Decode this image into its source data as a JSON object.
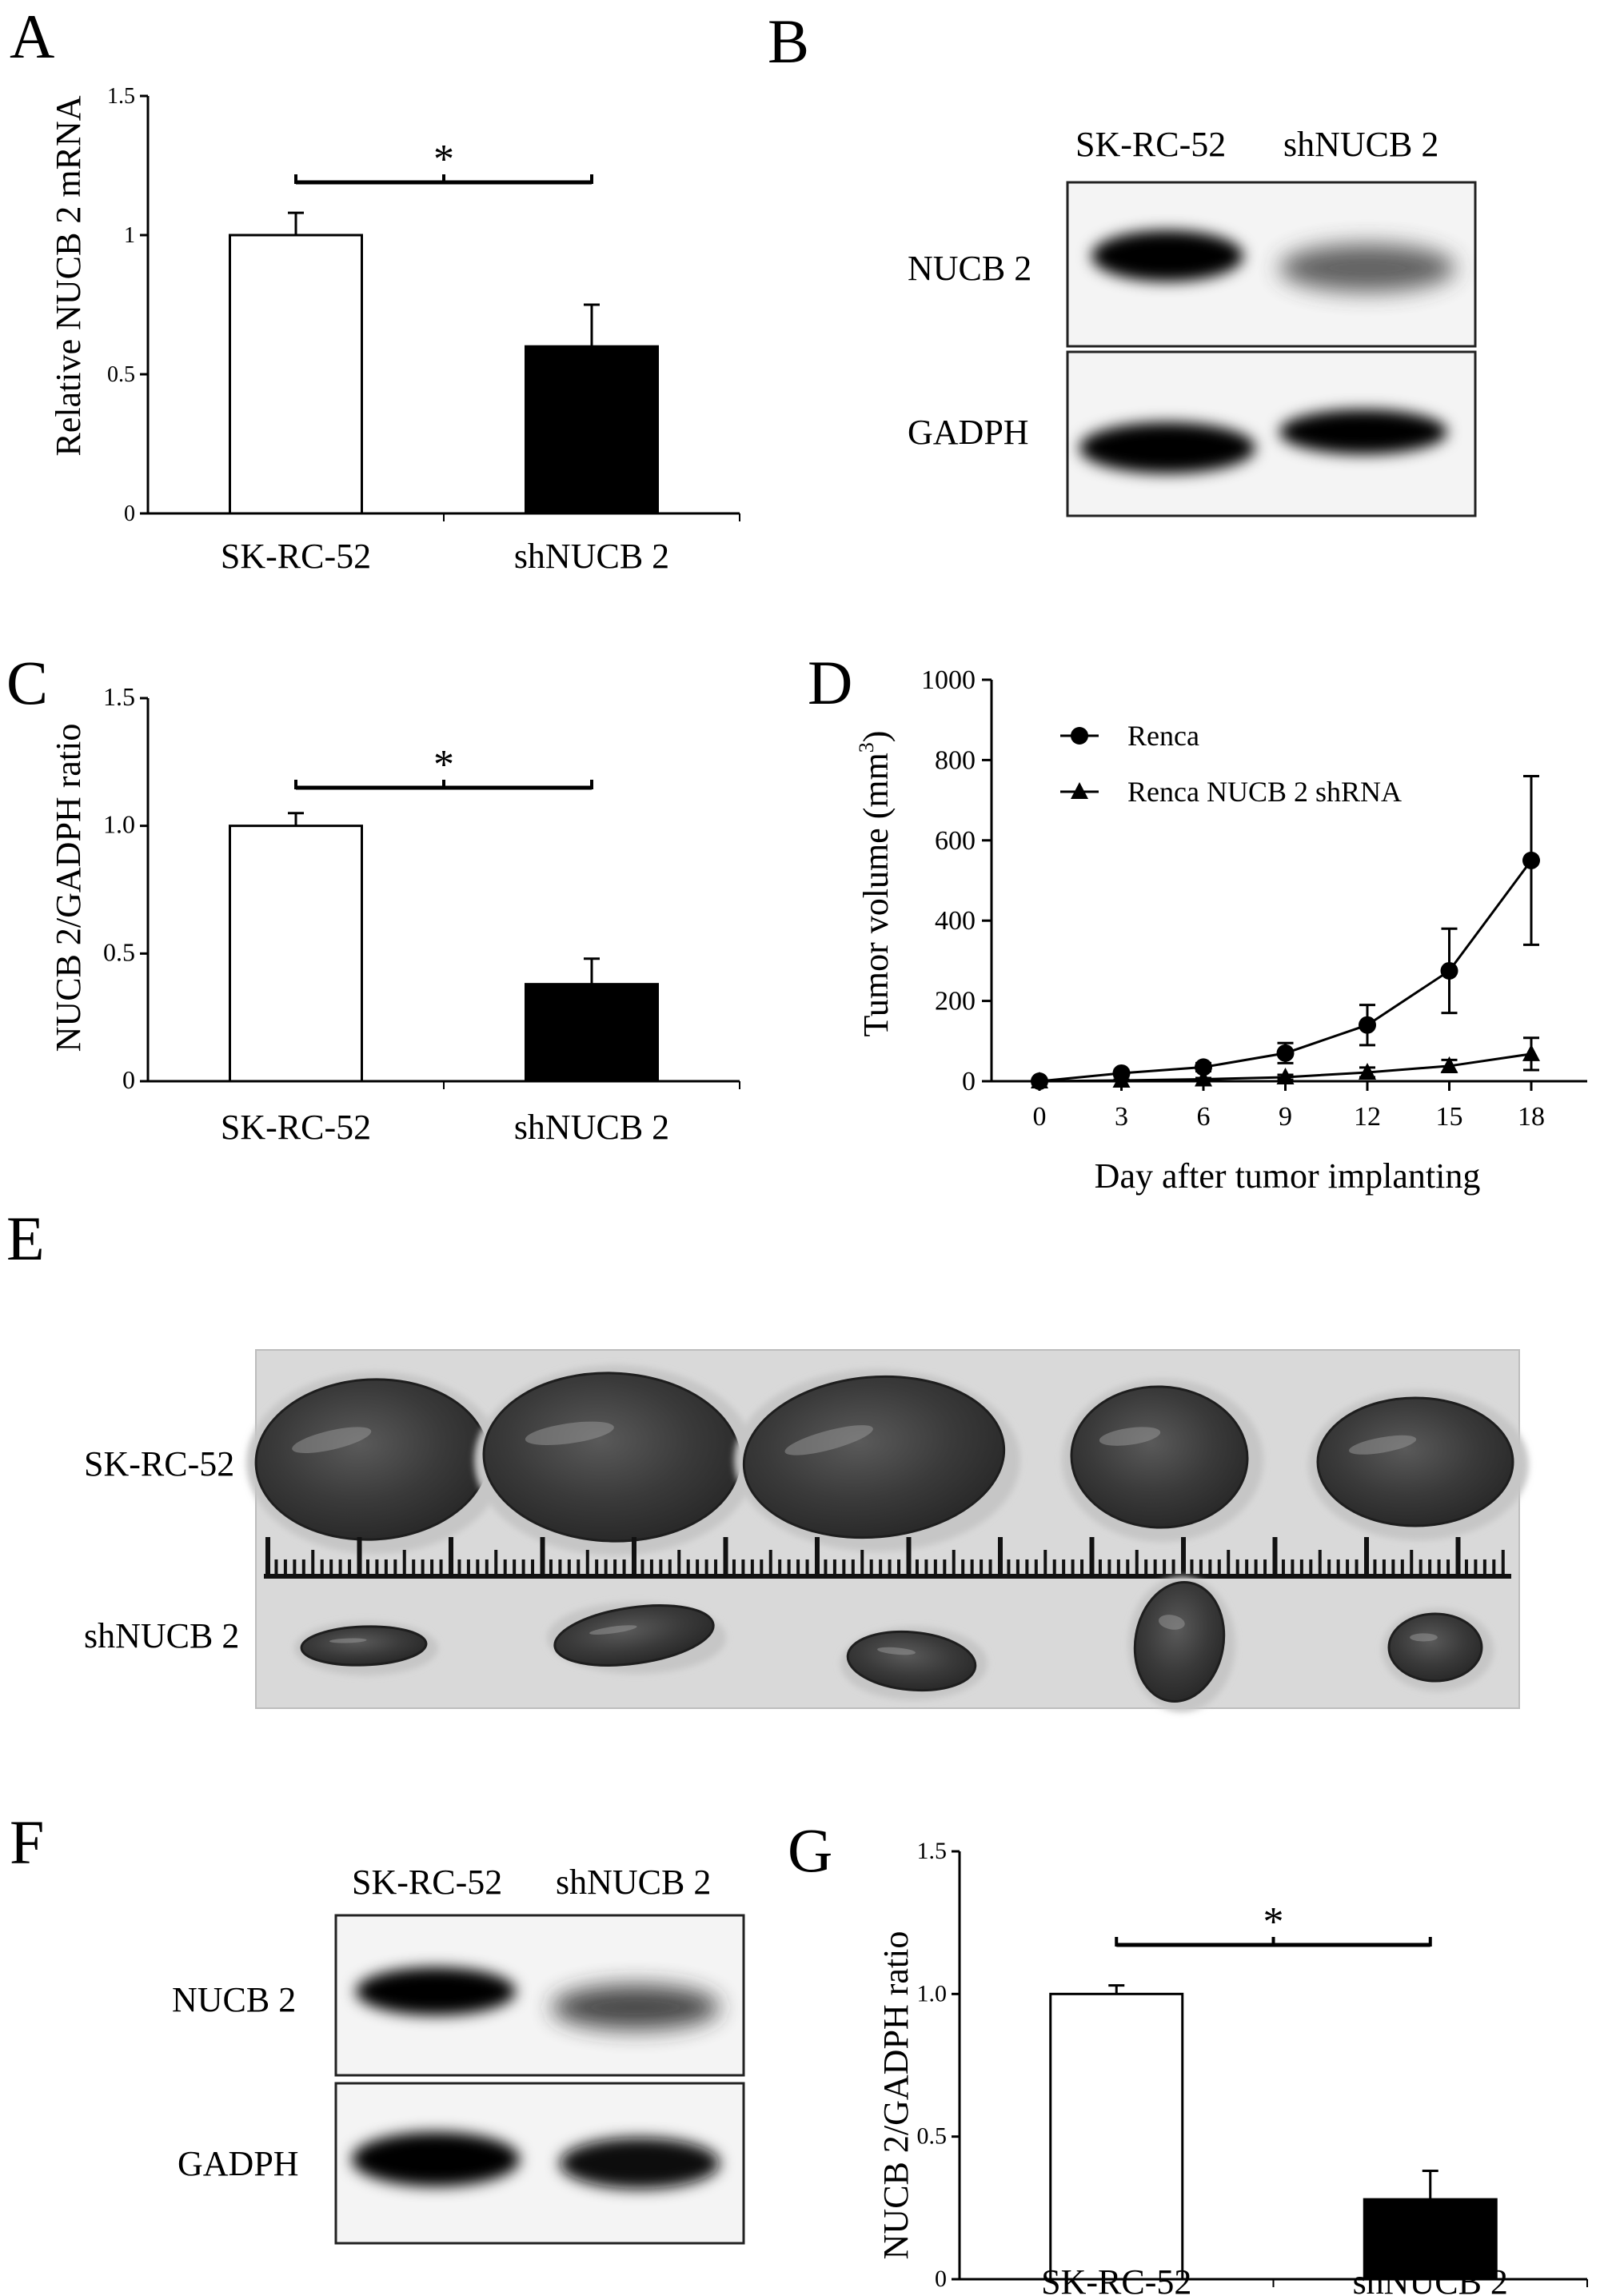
{
  "panels": {
    "A": {
      "letter": "A"
    },
    "B": {
      "letter": "B",
      "lanes": [
        "SK-RC-52",
        "shNUCB 2"
      ],
      "rows": [
        "NUCB 2",
        "GADPH"
      ]
    },
    "C": {
      "letter": "C"
    },
    "D": {
      "letter": "D"
    },
    "E": {
      "letter": "E",
      "rows": [
        "SK-RC-52",
        "shNUCB 2"
      ]
    },
    "F": {
      "letter": "F",
      "lanes": [
        "SK-RC-52",
        "shNUCB 2"
      ],
      "rows": [
        "NUCB 2",
        "GADPH"
      ]
    },
    "G": {
      "letter": "G"
    }
  },
  "chart_data": [
    {
      "id": "A",
      "type": "bar",
      "categories": [
        "SK-RC-52",
        "shNUCB 2"
      ],
      "values": [
        1.0,
        0.6
      ],
      "errors": [
        0.08,
        0.15
      ],
      "bar_colors": [
        "#ffffff",
        "#000000"
      ],
      "ylabel": "Relative NUCB 2 mRNA",
      "ylim": [
        0,
        1.5
      ],
      "yticks": [
        "0",
        "0.5",
        "1",
        "1.5"
      ],
      "significance": "*"
    },
    {
      "id": "C",
      "type": "bar",
      "categories": [
        "SK-RC-52",
        "shNUCB 2"
      ],
      "values": [
        1.0,
        0.38
      ],
      "errors": [
        0.05,
        0.1
      ],
      "bar_colors": [
        "#ffffff",
        "#000000"
      ],
      "ylabel": "NUCB 2/GADPH ratio",
      "ylim": [
        0,
        1.5
      ],
      "yticks": [
        "0",
        "0.5",
        "1.0",
        "1.5"
      ],
      "significance": "*"
    },
    {
      "id": "D",
      "type": "line",
      "x": [
        0,
        3,
        6,
        9,
        12,
        15,
        18
      ],
      "xticks": [
        "0",
        "3",
        "6",
        "9",
        "12",
        "15",
        "18"
      ],
      "series": [
        {
          "name": "Renca",
          "marker": "circle",
          "values": [
            0,
            20,
            35,
            70,
            140,
            275,
            550
          ],
          "errors": [
            3,
            8,
            10,
            25,
            50,
            105,
            210
          ]
        },
        {
          "name": "Renca NUCB 2 shRNA",
          "marker": "triangle",
          "values": [
            0,
            2,
            5,
            10,
            22,
            38,
            68
          ],
          "errors": [
            1,
            2,
            3,
            6,
            12,
            15,
            40
          ]
        }
      ],
      "xlabel": "Day after tumor implanting",
      "ylabel_main": "Tumor volume (mm",
      "ylabel_sup": "3",
      "ylabel_end": ")",
      "ylim": [
        0,
        1000
      ],
      "yticks": [
        "0",
        "200",
        "400",
        "600",
        "800",
        "1000"
      ],
      "legend": "top-left"
    },
    {
      "id": "G",
      "type": "bar",
      "categories": [
        "SK-RC-52",
        "shNUCB 2"
      ],
      "values": [
        1.0,
        0.28
      ],
      "errors": [
        0.03,
        0.1
      ],
      "bar_colors": [
        "#ffffff",
        "#000000"
      ],
      "ylabel": "NUCB 2/GADPH ratio",
      "ylim": [
        0,
        1.5
      ],
      "yticks": [
        "0",
        "0.5",
        "1.0",
        "1.5"
      ],
      "significance": "*"
    }
  ]
}
